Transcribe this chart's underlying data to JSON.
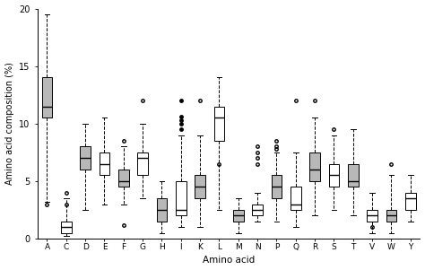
{
  "amino_acids": [
    "A",
    "C",
    "D",
    "E",
    "F",
    "G",
    "H",
    "I",
    "K",
    "L",
    "M",
    "N",
    "P",
    "Q",
    "R",
    "S",
    "T",
    "V",
    "W",
    "Y"
  ],
  "boxes": {
    "A": {
      "whislo": 3.2,
      "q1": 10.5,
      "med": 11.5,
      "q3": 14.0,
      "whishi": 19.5,
      "fliers": [
        3.0
      ]
    },
    "C": {
      "whislo": 0.2,
      "q1": 0.5,
      "med": 1.0,
      "q3": 1.5,
      "whishi": 3.5,
      "fliers": [
        3.0,
        4.0
      ]
    },
    "D": {
      "whislo": 2.5,
      "q1": 6.0,
      "med": 7.0,
      "q3": 8.0,
      "whishi": 10.0,
      "fliers": []
    },
    "E": {
      "whislo": 3.0,
      "q1": 5.5,
      "med": 6.5,
      "q3": 7.5,
      "whishi": 10.5,
      "fliers": []
    },
    "F": {
      "whislo": 3.0,
      "q1": 4.5,
      "med": 5.0,
      "q3": 6.0,
      "whishi": 8.0,
      "fliers": [
        8.5,
        1.2
      ]
    },
    "G": {
      "whislo": 3.5,
      "q1": 5.5,
      "med": 7.0,
      "q3": 7.5,
      "whishi": 10.0,
      "fliers": [
        12.0
      ]
    },
    "H": {
      "whislo": 0.5,
      "q1": 1.5,
      "med": 2.5,
      "q3": 3.5,
      "whishi": 5.0,
      "fliers": []
    },
    "I": {
      "whislo": 1.0,
      "q1": 2.0,
      "med": 2.5,
      "q3": 5.0,
      "whishi": 9.0,
      "fliers": [
        9.5,
        10.0,
        10.3,
        10.6,
        12.0
      ]
    },
    "K": {
      "whislo": 1.0,
      "q1": 3.5,
      "med": 4.5,
      "q3": 5.5,
      "whishi": 9.0,
      "fliers": [
        12.0
      ]
    },
    "L": {
      "whislo": 2.5,
      "q1": 8.5,
      "med": 10.5,
      "q3": 11.5,
      "whishi": 14.0,
      "fliers": [
        6.5
      ]
    },
    "M": {
      "whislo": 0.5,
      "q1": 1.5,
      "med": 2.0,
      "q3": 2.5,
      "whishi": 3.5,
      "fliers": []
    },
    "N": {
      "whislo": 1.5,
      "q1": 2.0,
      "med": 2.5,
      "q3": 3.0,
      "whishi": 4.0,
      "fliers": [
        6.5,
        7.0,
        7.5,
        8.0
      ]
    },
    "P": {
      "whislo": 1.5,
      "q1": 3.5,
      "med": 4.5,
      "q3": 5.5,
      "whishi": 7.5,
      "fliers": [
        7.8,
        8.0,
        8.5
      ]
    },
    "Q": {
      "whislo": 1.0,
      "q1": 2.5,
      "med": 3.0,
      "q3": 4.5,
      "whishi": 7.5,
      "fliers": [
        12.0
      ]
    },
    "R": {
      "whislo": 2.0,
      "q1": 5.0,
      "med": 6.0,
      "q3": 7.5,
      "whishi": 10.5,
      "fliers": [
        12.0
      ]
    },
    "S": {
      "whislo": 2.5,
      "q1": 4.5,
      "med": 5.5,
      "q3": 6.5,
      "whishi": 9.0,
      "fliers": [
        9.5
      ]
    },
    "T": {
      "whislo": 2.0,
      "q1": 4.5,
      "med": 5.0,
      "q3": 6.5,
      "whishi": 9.5,
      "fliers": []
    },
    "V": {
      "whislo": 0.5,
      "q1": 1.5,
      "med": 2.0,
      "q3": 2.5,
      "whishi": 4.0,
      "fliers": [
        1.0
      ]
    },
    "W": {
      "whislo": 0.5,
      "q1": 1.5,
      "med": 2.0,
      "q3": 2.5,
      "whishi": 5.5,
      "fliers": [
        6.5
      ]
    },
    "Y": {
      "whislo": 1.5,
      "q1": 2.5,
      "med": 3.5,
      "q3": 4.0,
      "whishi": 5.5,
      "fliers": []
    }
  },
  "gray_aas": [
    "A",
    "D",
    "F",
    "H",
    "K",
    "M",
    "P",
    "R",
    "T",
    "W"
  ],
  "white_aas": [
    "C",
    "E",
    "G",
    "I",
    "L",
    "N",
    "Q",
    "S",
    "V",
    "Y"
  ],
  "ylabel": "Amino acid composition (%)",
  "xlabel": "Amino acid",
  "ylim": [
    0,
    20
  ],
  "yticks": [
    0,
    5,
    10,
    15,
    20
  ],
  "box_color_gray": "#b8b8b8",
  "box_color_white": "#ffffff",
  "background_color": "#ffffff",
  "figsize": [
    4.74,
    3.01
  ],
  "dpi": 100
}
